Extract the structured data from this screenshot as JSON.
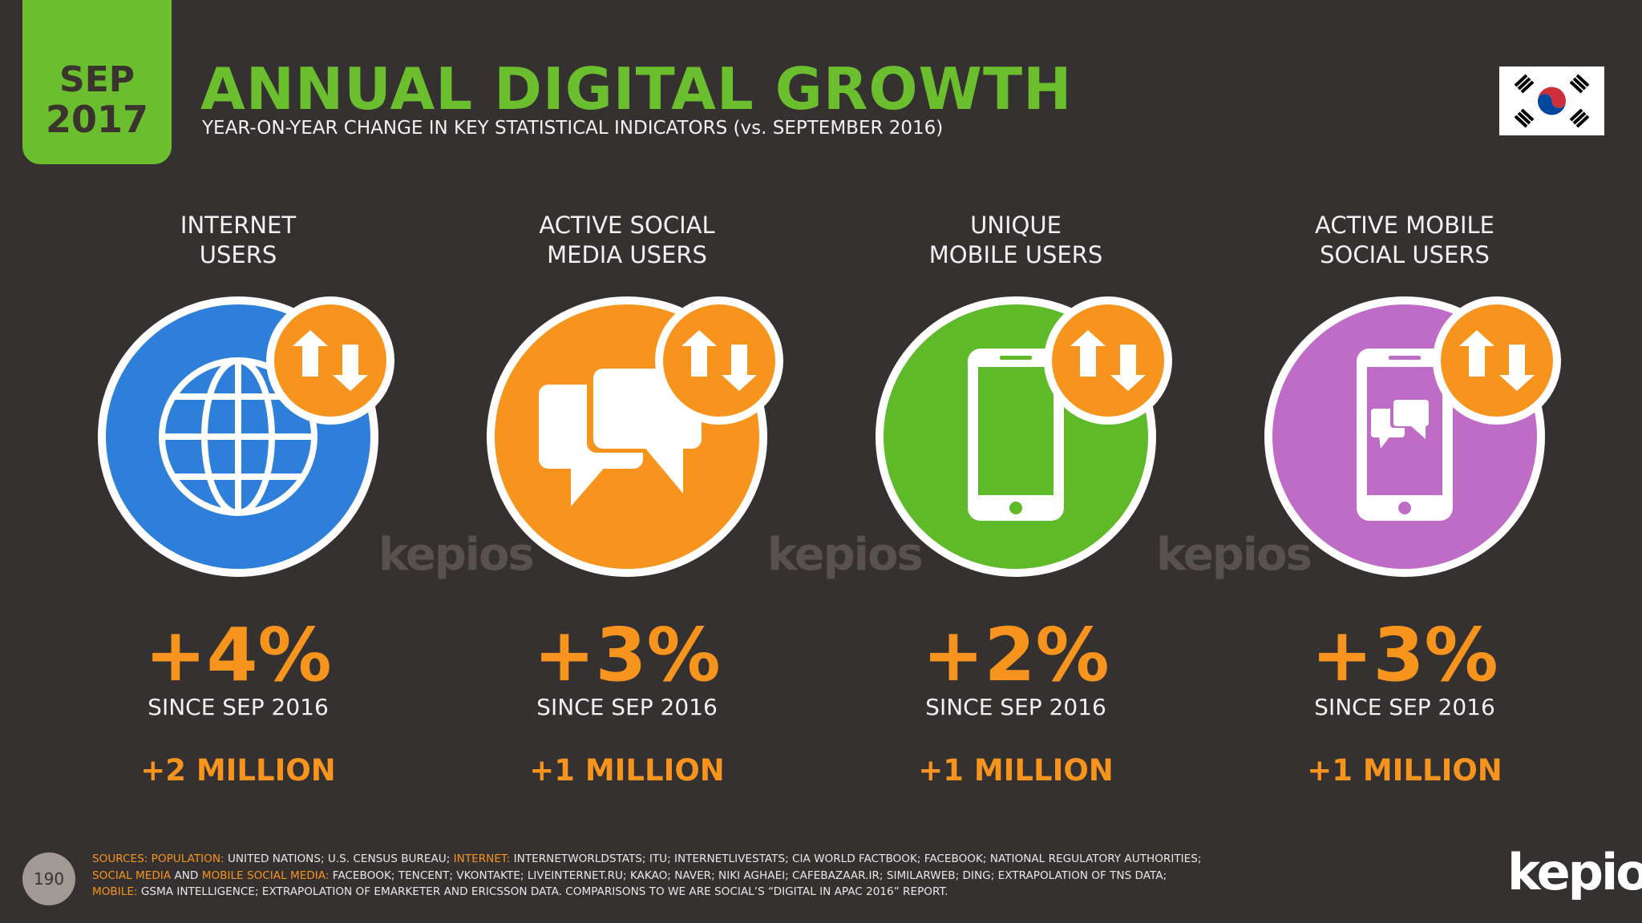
{
  "header": {
    "date_month": "SEP",
    "date_year": "2017",
    "title": "ANNUAL DIGITAL GROWTH",
    "subtitle": "YEAR-ON-YEAR CHANGE IN KEY STATISTICAL INDICATORS (vs. SEPTEMBER 2016)",
    "flag_icon": "south-korea-flag-icon"
  },
  "metrics": [
    {
      "label_line1": "INTERNET",
      "label_line2": "USERS",
      "percent": "+4%",
      "since": "SINCE SEP 2016",
      "absolute": "+2 MILLION",
      "icon": "globe-icon",
      "color": "#2d7fd9"
    },
    {
      "label_line1": "ACTIVE SOCIAL",
      "label_line2": "MEDIA USERS",
      "percent": "+3%",
      "since": "SINCE SEP 2016",
      "absolute": "+1 MILLION",
      "icon": "chat-bubbles-icon",
      "color": "#f7941e"
    },
    {
      "label_line1": "UNIQUE",
      "label_line2": "MOBILE USERS",
      "percent": "+2%",
      "since": "SINCE SEP 2016",
      "absolute": "+1 MILLION",
      "icon": "mobile-phone-icon",
      "color": "#5fba29"
    },
    {
      "label_line1": "ACTIVE MOBILE",
      "label_line2": "SOCIAL USERS",
      "percent": "+3%",
      "since": "SINCE SEP 2016",
      "absolute": "+1 MILLION",
      "icon": "mobile-chat-icon",
      "color": "#bf6cc7"
    }
  ],
  "watermark": "kepios",
  "footer": {
    "page_number": "190",
    "sources_label": "SOURCES:",
    "population_key": "POPULATION:",
    "population_text": "UNITED NATIONS; U.S. CENSUS BUREAU;",
    "internet_key": "INTERNET:",
    "internet_text": "INTERNETWORLDSTATS; ITU; INTERNETLIVESTATS; CIA WORLD FACTBOOK; FACEBOOK; NATIONAL REGULATORY AUTHORITIES;",
    "social_key": "SOCIAL MEDIA",
    "and_text": "AND",
    "mobile_social_key": "MOBILE SOCIAL MEDIA:",
    "social_text": "FACEBOOK; TENCENT; VKONTAKTE; LIVEINTERNET.RU; KAKAO; NAVER; NIKI AGHAEI; CAFEBAZAAR.IR; SIMILARWEB; DING; EXTRAPOLATION OF TNS DATA;",
    "mobile_key": "MOBILE:",
    "mobile_text": "GSMA INTELLIGENCE; EXTRAPOLATION OF EMARKETER AND ERICSSON DATA. COMPARISONS TO WE ARE SOCIAL’S “DIGITAL IN APAC 2016” REPORT.",
    "brand": "kepios"
  },
  "colors": {
    "background": "#353130",
    "accent_green": "#6bbe2e",
    "accent_orange": "#f7941e"
  }
}
